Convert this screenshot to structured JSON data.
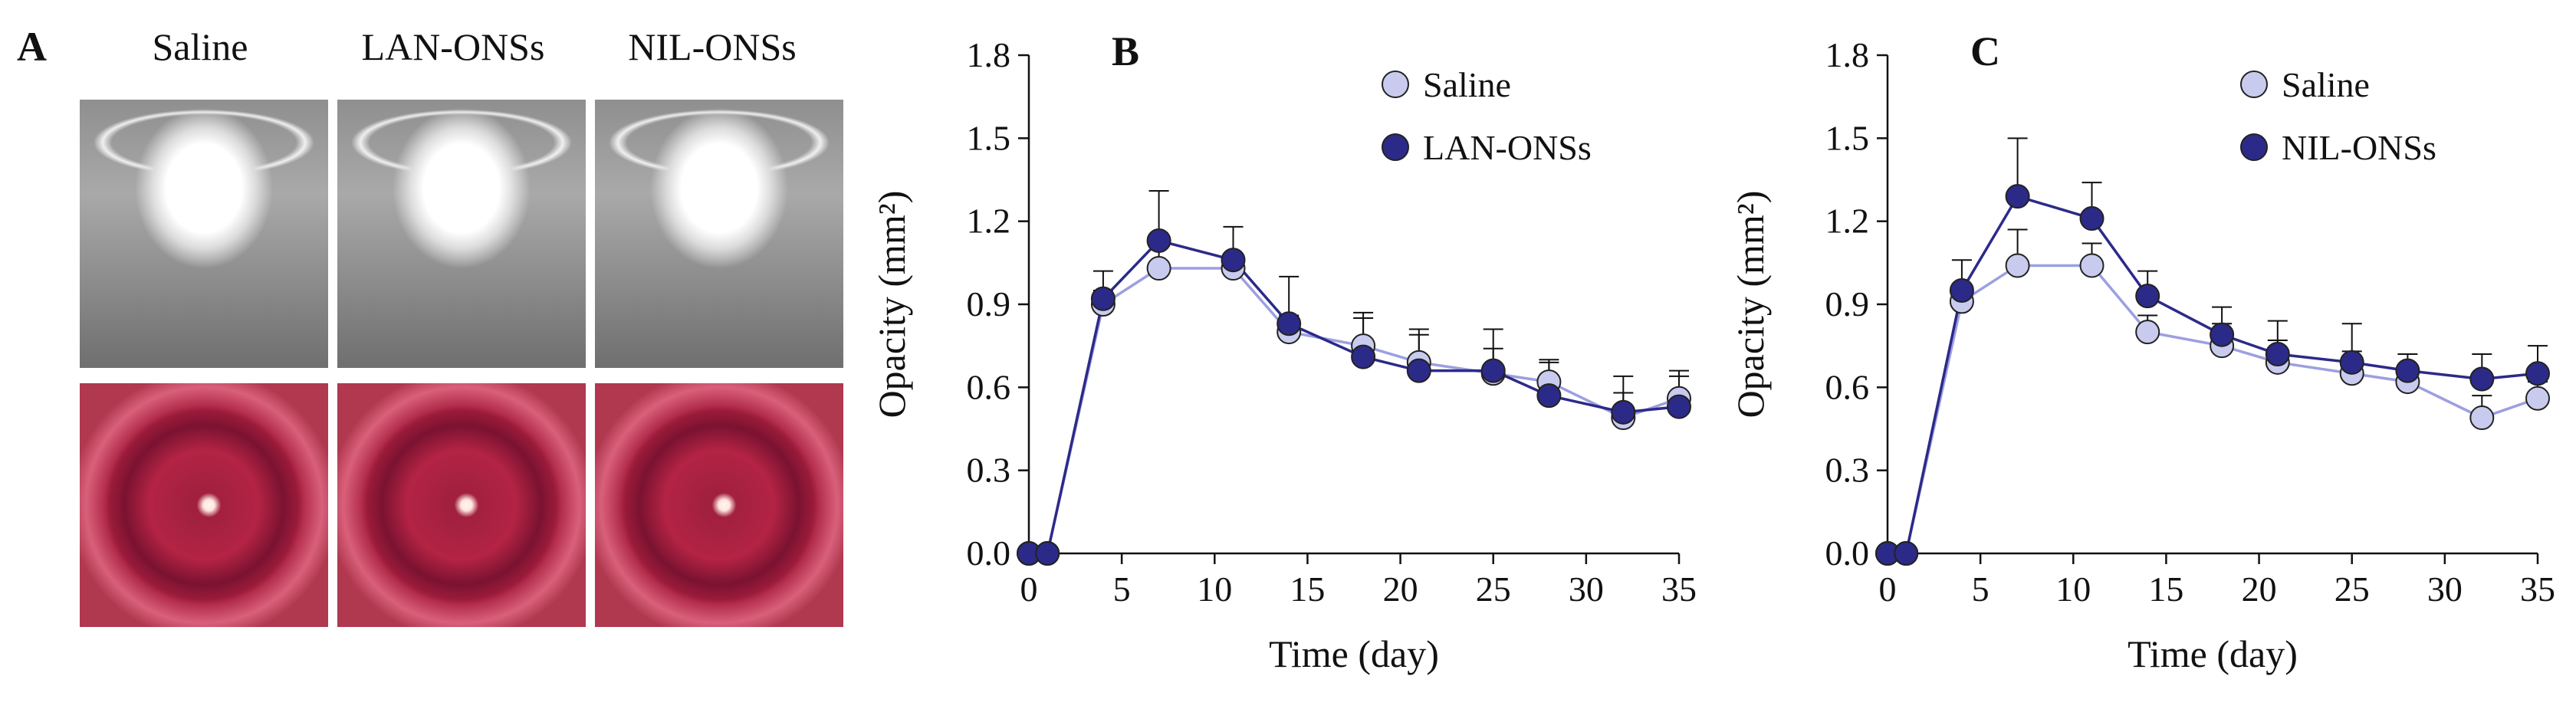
{
  "panel_a": {
    "letter": "A",
    "columns": [
      "Saline",
      "LAN-ONSs",
      "NIL-ONSs"
    ]
  },
  "chart_data": [
    {
      "type": "line",
      "panel": "B",
      "xlabel": "Time (day)",
      "ylabel": "Opacity (mm²)",
      "xlim": [
        0,
        35
      ],
      "ylim": [
        0,
        1.8
      ],
      "xticks": [
        0,
        5,
        10,
        15,
        20,
        25,
        30,
        35
      ],
      "yticks": [
        "0.0",
        "0.3",
        "0.6",
        "0.9",
        "1.2",
        "1.5",
        "1.8"
      ],
      "legend_position": "top-right",
      "x": [
        0,
        1,
        4,
        7,
        11,
        14,
        18,
        21,
        25,
        28,
        32,
        35
      ],
      "series": [
        {
          "name": "Saline",
          "color": "#c9cbee",
          "values": [
            0,
            0,
            0.9,
            1.03,
            1.03,
            0.8,
            0.75,
            0.69,
            0.65,
            0.62,
            0.49,
            0.56
          ],
          "errors": [
            0,
            0,
            0.05,
            0.08,
            0.04,
            0.06,
            0.1,
            0.1,
            0.09,
            0.08,
            0.09,
            0.08
          ]
        },
        {
          "name": "LAN-ONSs",
          "color": "#2c2a88",
          "values": [
            0,
            0,
            0.92,
            1.13,
            1.06,
            0.83,
            0.71,
            0.66,
            0.66,
            0.57,
            0.51,
            0.53
          ],
          "errors": [
            0,
            0,
            0.1,
            0.18,
            0.12,
            0.17,
            0.16,
            0.15,
            0.15,
            0.12,
            0.13,
            0.13
          ]
        }
      ]
    },
    {
      "type": "line",
      "panel": "C",
      "xlabel": "Time (day)",
      "ylabel": "Opacity (mm²)",
      "xlim": [
        0,
        35
      ],
      "ylim": [
        0,
        1.8
      ],
      "xticks": [
        0,
        5,
        10,
        15,
        20,
        25,
        30,
        35
      ],
      "yticks": [
        "0.0",
        "0.3",
        "0.6",
        "0.9",
        "1.2",
        "1.5",
        "1.8"
      ],
      "legend_position": "top-right",
      "x": [
        0,
        1,
        4,
        7,
        11,
        14,
        18,
        21,
        25,
        28,
        32,
        35
      ],
      "series": [
        {
          "name": "Saline",
          "color": "#c9cbee",
          "values": [
            0,
            0,
            0.91,
            1.04,
            1.04,
            0.8,
            0.75,
            0.69,
            0.65,
            0.62,
            0.49,
            0.56
          ],
          "errors": [
            0,
            0,
            0.05,
            0.13,
            0.08,
            0.06,
            0.08,
            0.08,
            0.08,
            0.06,
            0.08,
            0.06
          ]
        },
        {
          "name": "NIL-ONSs",
          "color": "#2c2a88",
          "values": [
            0,
            0,
            0.95,
            1.29,
            1.21,
            0.93,
            0.79,
            0.72,
            0.69,
            0.66,
            0.63,
            0.65
          ],
          "errors": [
            0,
            0,
            0.11,
            0.21,
            0.13,
            0.09,
            0.1,
            0.12,
            0.14,
            0.06,
            0.09,
            0.1
          ]
        }
      ]
    }
  ]
}
